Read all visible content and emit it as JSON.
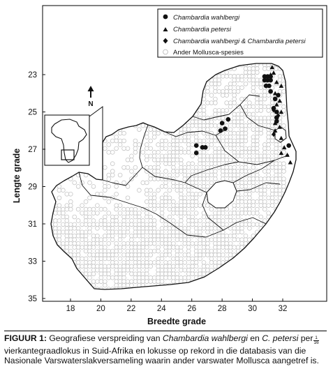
{
  "map": {
    "north_label": "N",
    "legend": [
      {
        "id": "wahlbergi",
        "label": "Chambardia wahlbergi",
        "symbol": "filled-circle-icon"
      },
      {
        "id": "petersi",
        "label": "Chambardia petersi",
        "symbol": "filled-triangle-icon"
      },
      {
        "id": "both",
        "label": "Chambardia wahlbergi & Chambardia petersi",
        "symbol": "filled-diamond-icon"
      },
      {
        "id": "other",
        "label": "Ander Mollusca-spesies",
        "symbol": "open-circle-icon"
      }
    ],
    "x_axis": {
      "title": "Breedte grade",
      "ticks": [
        "18",
        "20",
        "22",
        "24",
        "26",
        "28",
        "30",
        "32"
      ]
    },
    "y_axis": {
      "title": "Lengte grade",
      "ticks": [
        "23",
        "25",
        "27",
        "29",
        "31",
        "33",
        "35"
      ]
    },
    "colors": {
      "ink": "#111111",
      "open_marker": "#c4c4c4",
      "frame": "#000000"
    }
  },
  "caption": {
    "label": "FIGUUR 1:",
    "t1": " Geografiese verspreiding van ",
    "sp1": "Chambardia wahlbergi",
    "t2": " en ",
    "sp2": "C. petersi",
    "t3": " per",
    "frac_num": "1",
    "frac_den": "16",
    "t4": "vierkantegraadlokus in Suid-Afrika en lokusse op rekord in die databasis van die Nasionale Varswaterslakversameling waarin ander varswater Mollusca aangetref is."
  }
}
